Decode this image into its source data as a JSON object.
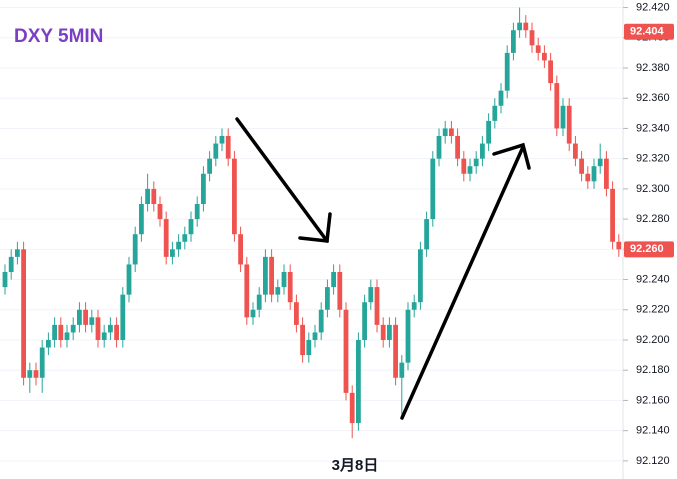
{
  "chart_data": {
    "type": "candlestick",
    "title": "DXY 5MIN",
    "time_label": "3月8日",
    "up_color": "#26a69a",
    "down_color": "#ef5350",
    "title_color": "#7b3fc4",
    "grid": true,
    "ylim": [
      92.108,
      92.425
    ],
    "yticks": [
      {
        "value": 92.12,
        "label": "92.120"
      },
      {
        "value": 92.14,
        "label": "92.140"
      },
      {
        "value": 92.16,
        "label": "92.160"
      },
      {
        "value": 92.18,
        "label": "92.180"
      },
      {
        "value": 92.2,
        "label": "92.200"
      },
      {
        "value": 92.22,
        "label": "92.220"
      },
      {
        "value": 92.24,
        "label": "92.240"
      },
      {
        "value": 92.26,
        "label": "92.260"
      },
      {
        "value": 92.28,
        "label": "92.280"
      },
      {
        "value": 92.3,
        "label": "92.300"
      },
      {
        "value": 92.32,
        "label": "92.320"
      },
      {
        "value": 92.34,
        "label": "92.340"
      },
      {
        "value": 92.36,
        "label": "92.360"
      },
      {
        "value": 92.38,
        "label": "92.380"
      },
      {
        "value": 92.4,
        "label": "92.400"
      },
      {
        "value": 92.42,
        "label": "92.420"
      }
    ],
    "price_labels": [
      {
        "value": 92.404,
        "label": "92.404"
      },
      {
        "value": 92.26,
        "label": "92.260"
      }
    ],
    "candles": [
      [
        92.235,
        92.25,
        92.23,
        92.245
      ],
      [
        92.245,
        92.26,
        92.24,
        92.255
      ],
      [
        92.255,
        92.265,
        92.25,
        92.26
      ],
      [
        92.26,
        92.265,
        92.17,
        92.175
      ],
      [
        92.175,
        92.185,
        92.165,
        92.18
      ],
      [
        92.18,
        92.185,
        92.17,
        92.175
      ],
      [
        92.175,
        92.2,
        92.165,
        92.195
      ],
      [
        92.195,
        92.205,
        92.19,
        92.2
      ],
      [
        92.2,
        92.215,
        92.195,
        92.21
      ],
      [
        92.21,
        92.215,
        92.195,
        92.2
      ],
      [
        92.2,
        92.21,
        92.195,
        92.205
      ],
      [
        92.205,
        92.215,
        92.2,
        92.21
      ],
      [
        92.21,
        92.225,
        92.205,
        92.22
      ],
      [
        92.22,
        92.225,
        92.205,
        92.21
      ],
      [
        92.21,
        92.22,
        92.205,
        92.215
      ],
      [
        92.215,
        92.22,
        92.195,
        92.2
      ],
      [
        92.2,
        92.21,
        92.195,
        92.205
      ],
      [
        92.205,
        92.215,
        92.2,
        92.21
      ],
      [
        92.21,
        92.215,
        92.195,
        92.2
      ],
      [
        92.2,
        92.235,
        92.195,
        92.23
      ],
      [
        92.23,
        92.255,
        92.225,
        92.25
      ],
      [
        92.25,
        92.275,
        92.245,
        92.27
      ],
      [
        92.27,
        92.295,
        92.265,
        92.29
      ],
      [
        92.29,
        92.31,
        92.285,
        92.3
      ],
      [
        92.3,
        92.305,
        92.285,
        92.29
      ],
      [
        92.29,
        92.295,
        92.275,
        92.28
      ],
      [
        92.28,
        92.285,
        92.25,
        92.255
      ],
      [
        92.255,
        92.265,
        92.25,
        92.26
      ],
      [
        92.26,
        92.27,
        92.255,
        92.265
      ],
      [
        92.265,
        92.275,
        92.26,
        92.27
      ],
      [
        92.27,
        92.285,
        92.265,
        92.28
      ],
      [
        92.28,
        92.295,
        92.275,
        92.29
      ],
      [
        92.29,
        92.315,
        92.285,
        92.31
      ],
      [
        92.31,
        92.325,
        92.305,
        92.32
      ],
      [
        92.32,
        92.335,
        92.315,
        92.33
      ],
      [
        92.33,
        92.34,
        92.325,
        92.335
      ],
      [
        92.335,
        92.34,
        92.315,
        92.32
      ],
      [
        92.32,
        92.325,
        92.265,
        92.27
      ],
      [
        92.27,
        92.275,
        92.245,
        92.25
      ],
      [
        92.25,
        92.255,
        92.21,
        92.215
      ],
      [
        92.215,
        92.225,
        92.21,
        92.22
      ],
      [
        92.22,
        92.235,
        92.215,
        92.23
      ],
      [
        92.23,
        92.26,
        92.225,
        92.255
      ],
      [
        92.255,
        92.26,
        92.225,
        92.23
      ],
      [
        92.23,
        92.24,
        92.225,
        92.235
      ],
      [
        92.235,
        92.25,
        92.23,
        92.245
      ],
      [
        92.245,
        92.25,
        92.22,
        92.225
      ],
      [
        92.225,
        92.23,
        92.205,
        92.21
      ],
      [
        92.21,
        92.215,
        92.185,
        92.19
      ],
      [
        92.19,
        92.205,
        92.185,
        92.2
      ],
      [
        92.2,
        92.21,
        92.195,
        92.205
      ],
      [
        92.205,
        92.225,
        92.2,
        92.22
      ],
      [
        92.22,
        92.24,
        92.215,
        92.235
      ],
      [
        92.235,
        92.25,
        92.23,
        92.245
      ],
      [
        92.245,
        92.25,
        92.215,
        92.22
      ],
      [
        92.22,
        92.225,
        92.16,
        92.165
      ],
      [
        92.165,
        92.17,
        92.135,
        92.145
      ],
      [
        92.145,
        92.205,
        92.14,
        92.2
      ],
      [
        92.2,
        92.23,
        92.195,
        92.225
      ],
      [
        92.225,
        92.24,
        92.22,
        92.235
      ],
      [
        92.235,
        92.24,
        92.205,
        92.21
      ],
      [
        92.21,
        92.215,
        92.195,
        92.2
      ],
      [
        92.2,
        92.215,
        92.195,
        92.21
      ],
      [
        92.21,
        92.215,
        92.17,
        92.175
      ],
      [
        92.175,
        92.19,
        92.15,
        92.185
      ],
      [
        92.185,
        92.225,
        92.18,
        92.22
      ],
      [
        92.22,
        92.23,
        92.215,
        92.225
      ],
      [
        92.225,
        92.265,
        92.22,
        92.26
      ],
      [
        92.26,
        92.285,
        92.255,
        92.28
      ],
      [
        92.28,
        92.325,
        92.275,
        92.32
      ],
      [
        92.32,
        92.34,
        92.315,
        92.335
      ],
      [
        92.335,
        92.345,
        92.33,
        92.34
      ],
      [
        92.34,
        92.345,
        92.33,
        92.335
      ],
      [
        92.335,
        92.34,
        92.315,
        92.32
      ],
      [
        92.32,
        92.325,
        92.305,
        92.31
      ],
      [
        92.31,
        92.32,
        92.305,
        92.315
      ],
      [
        92.315,
        92.325,
        92.31,
        92.32
      ],
      [
        92.32,
        92.335,
        92.315,
        92.33
      ],
      [
        92.33,
        92.35,
        92.325,
        92.345
      ],
      [
        92.345,
        92.36,
        92.34,
        92.355
      ],
      [
        92.355,
        92.37,
        92.35,
        92.365
      ],
      [
        92.365,
        92.395,
        92.36,
        92.39
      ],
      [
        92.39,
        92.41,
        92.385,
        92.405
      ],
      [
        92.405,
        92.42,
        92.4,
        92.41
      ],
      [
        92.41,
        92.415,
        92.4,
        92.405
      ],
      [
        92.405,
        92.41,
        92.39,
        92.395
      ],
      [
        92.395,
        92.4,
        92.385,
        92.39
      ],
      [
        92.39,
        92.395,
        92.38,
        92.385
      ],
      [
        92.385,
        92.39,
        92.365,
        92.37
      ],
      [
        92.37,
        92.375,
        92.335,
        92.34
      ],
      [
        92.34,
        92.36,
        92.335,
        92.355
      ],
      [
        92.355,
        92.36,
        92.325,
        92.33
      ],
      [
        92.33,
        92.335,
        92.315,
        92.32
      ],
      [
        92.32,
        92.325,
        92.305,
        92.31
      ],
      [
        92.31,
        92.315,
        92.3,
        92.305
      ],
      [
        92.305,
        92.32,
        92.3,
        92.315
      ],
      [
        92.315,
        92.33,
        92.31,
        92.32
      ],
      [
        92.32,
        92.325,
        92.295,
        92.3
      ],
      [
        92.3,
        92.305,
        92.26,
        92.265
      ],
      [
        92.265,
        92.27,
        92.255,
        92.26
      ]
    ]
  }
}
